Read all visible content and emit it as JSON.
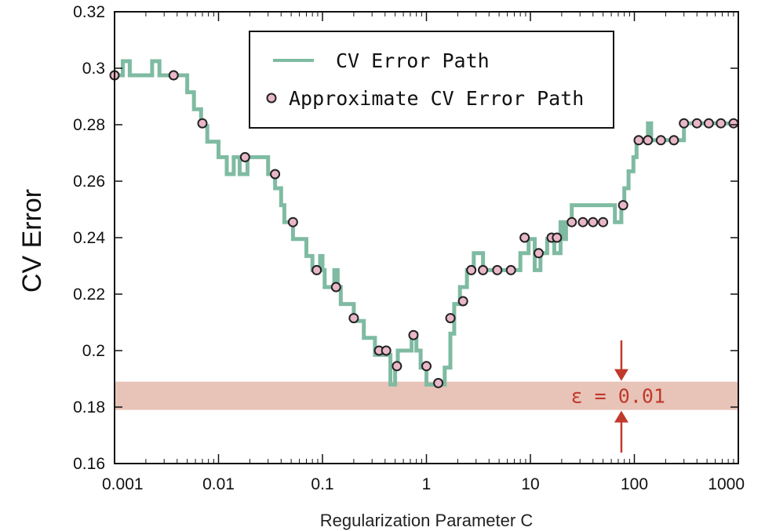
{
  "chart_data": {
    "type": "line",
    "title": "",
    "xlabel": "Regularization Parameter C",
    "ylabel": "CV Error",
    "x_scale": "log",
    "xlim": [
      0.001,
      1000
    ],
    "ylim": [
      0.16,
      0.32
    ],
    "x_ticks": [
      "0.001",
      "0.01",
      "0.1",
      "1",
      "10",
      "100",
      "1000"
    ],
    "y_ticks": [
      "0.16",
      "0.18",
      "0.2",
      "0.22",
      "0.24",
      "0.26",
      "0.28",
      "0.3",
      "0.32"
    ],
    "grid": false,
    "legend_position": "top-center",
    "band": {
      "y_min": 0.179,
      "y_max": 0.189,
      "color": "#e4b9ac"
    },
    "annotation": {
      "text": "ε = 0.01",
      "at_x": 75,
      "color": "#c0392b"
    },
    "series": [
      {
        "name": "CV Error Path",
        "style": "step",
        "color": "#7fbba2",
        "x": [
          0.001,
          0.0012,
          0.0014,
          0.0023,
          0.0027,
          0.005,
          0.0058,
          0.0068,
          0.0078,
          0.01,
          0.012,
          0.014,
          0.016,
          0.019,
          0.022,
          0.03,
          0.035,
          0.04,
          0.043,
          0.046,
          0.052,
          0.06,
          0.07,
          0.08,
          0.095,
          0.1,
          0.105,
          0.13,
          0.14,
          0.15,
          0.2,
          0.25,
          0.32,
          0.38,
          0.45,
          0.5,
          0.53,
          0.6,
          0.72,
          0.8,
          0.88,
          1.0,
          1.08,
          1.5,
          1.7,
          1.85,
          2.1,
          2.45,
          2.85,
          3.5,
          8.0,
          9.6,
          11.0,
          12.5,
          14.5,
          17.0,
          19.5,
          21.0,
          22.0,
          25.0,
          65.0,
          75.0,
          80.0,
          88.0,
          98.0,
          105.0,
          118.0,
          135.0,
          145.0,
          260.0,
          300.0,
          1000.0
        ],
        "y": [
          0.2975,
          0.3025,
          0.2975,
          0.3025,
          0.2975,
          0.2915,
          0.2855,
          0.2795,
          0.274,
          0.2685,
          0.2625,
          0.2685,
          0.2625,
          0.2685,
          0.2685,
          0.2625,
          0.2575,
          0.2515,
          0.2455,
          0.2455,
          0.2395,
          0.2395,
          0.2335,
          0.2285,
          0.2335,
          0.2285,
          0.2225,
          0.2285,
          0.2225,
          0.2165,
          0.2105,
          0.2045,
          0.1985,
          0.1985,
          0.188,
          0.194,
          0.2,
          0.2,
          0.206,
          0.2,
          0.194,
          0.188,
          0.188,
          0.194,
          0.206,
          0.2165,
          0.2225,
          0.2285,
          0.2345,
          0.2285,
          0.2345,
          0.2395,
          0.2285,
          0.2345,
          0.2395,
          0.2345,
          0.2455,
          0.2395,
          0.2455,
          0.2515,
          0.2455,
          0.2515,
          0.2575,
          0.2635,
          0.2685,
          0.2745,
          0.2745,
          0.2805,
          0.2745,
          0.2745,
          0.2805,
          0.2805
        ]
      },
      {
        "name": "Approximate CV Error Path",
        "style": "markers",
        "color": "#e8b7c8",
        "x": [
          0.001,
          0.0037,
          0.007,
          0.018,
          0.035,
          0.052,
          0.088,
          0.135,
          0.2,
          0.35,
          0.41,
          0.52,
          0.75,
          1.0,
          1.3,
          1.7,
          2.25,
          2.7,
          3.5,
          4.8,
          6.5,
          8.8,
          12.0,
          16.0,
          18.0,
          25.0,
          32.0,
          40.0,
          50.0,
          78.0,
          110.0,
          135.0,
          180.0,
          240.0,
          300.0,
          400.0,
          520.0,
          680.0,
          900.0
        ],
        "y": [
          0.2975,
          0.2975,
          0.2805,
          0.2685,
          0.2625,
          0.2455,
          0.2285,
          0.2225,
          0.2115,
          0.2,
          0.2,
          0.1945,
          0.2055,
          0.1945,
          0.1885,
          0.2115,
          0.2175,
          0.2285,
          0.2285,
          0.2285,
          0.2285,
          0.24,
          0.2345,
          0.24,
          0.24,
          0.2455,
          0.2455,
          0.2455,
          0.2455,
          0.2515,
          0.2745,
          0.2745,
          0.2745,
          0.2745,
          0.2805,
          0.2805,
          0.2805,
          0.2805,
          0.2805
        ]
      }
    ]
  }
}
